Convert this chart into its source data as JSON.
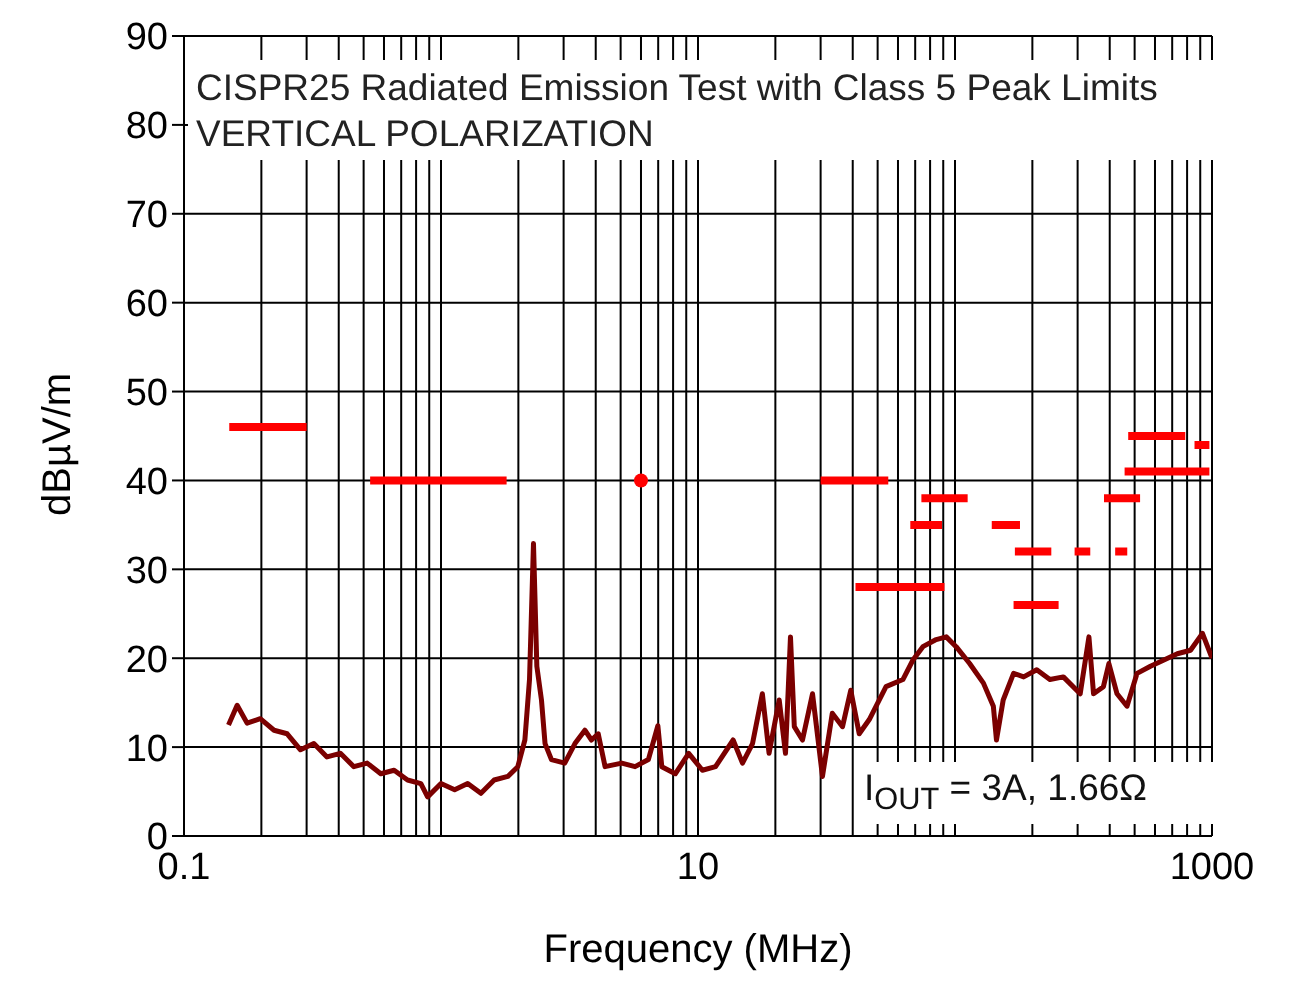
{
  "chart_data": {
    "type": "line",
    "xlabel": "Frequency (MHz)",
    "ylabel": "dBµV/m",
    "annotations": [
      "CISPR25 Radiated Emission Test with Class 5 Peak Limits VERTICAL POLARIZATION",
      "I$_{OUT}$ = 3A, 1.66Ω"
    ],
    "log": "x",
    "grid": true,
    "line_style": "solid",
    "xlim": [
      0.1,
      1000
    ],
    "ylim": [
      0,
      90
    ],
    "yticks": [
      0,
      10,
      20,
      30,
      40,
      50,
      60,
      70,
      80,
      90
    ],
    "xticks": [
      0.1,
      {
        "value": 0.2,
        "label": null
      },
      {
        "value": 0.3,
        "label": null
      },
      {
        "value": 0.4,
        "label": null
      },
      {
        "value": 0.5,
        "label": null
      },
      {
        "value": 0.6,
        "label": null
      },
      {
        "value": 0.7,
        "label": null
      },
      {
        "value": 0.8,
        "label": null
      },
      {
        "value": 0.9,
        "label": null
      },
      {
        "value": 1,
        "label": null
      },
      {
        "value": 2,
        "label": null
      },
      {
        "value": 3,
        "label": null
      },
      {
        "value": 4,
        "label": null
      },
      {
        "value": 5,
        "label": null
      },
      {
        "value": 6,
        "label": null
      },
      {
        "value": 7,
        "label": null
      },
      {
        "value": 8,
        "label": null
      },
      {
        "value": 9,
        "label": null
      },
      10,
      {
        "value": 20,
        "label": null
      },
      {
        "value": 30,
        "label": null
      },
      {
        "value": 40,
        "label": null
      },
      {
        "value": 50,
        "label": null
      },
      {
        "value": 60,
        "label": null
      },
      {
        "value": 70,
        "label": null
      },
      {
        "value": 80,
        "label": null
      },
      {
        "value": 90,
        "label": null
      },
      {
        "value": 100,
        "label": null
      },
      {
        "value": 200,
        "label": null
      },
      {
        "value": 300,
        "label": null
      },
      {
        "value": 400,
        "label": null
      },
      {
        "value": 500,
        "label": null
      },
      {
        "value": 600,
        "label": null
      },
      {
        "value": 700,
        "label": null
      },
      {
        "value": 800,
        "label": null
      },
      {
        "value": 900,
        "label": null
      },
      1000
    ],
    "series": [
      {
        "color": "#7b0000",
        "x": [
          0.149,
          0.161,
          0.176,
          0.198,
          0.224,
          0.252,
          0.284,
          0.32,
          0.36,
          0.406,
          0.458,
          0.516,
          0.583,
          0.657,
          0.741,
          0.835,
          0.887,
          1.0,
          1.13,
          1.27,
          1.43,
          1.61,
          1.82,
          1.99,
          2.12,
          2.21,
          2.29,
          2.36,
          2.46,
          2.54,
          2.69,
          3.03,
          3.32,
          3.63,
          3.85,
          4.09,
          4.35,
          5.05,
          5.69,
          6.41,
          6.98,
          7.23,
          8.16,
          9.2,
          10.4,
          11.7,
          13.7,
          14.9,
          16.3,
          17.8,
          18.9,
          20.7,
          21.9,
          22.9,
          23.7,
          25.5,
          27.9,
          30.5,
          33.3,
          36.5,
          39.3,
          42.4,
          46.4,
          53.9,
          62.7,
          68.6,
          75,
          84.5,
          92.5,
          101,
          114,
          129,
          141,
          145,
          154,
          169,
          185,
          208,
          234,
          264,
          307,
          332,
          346,
          378,
          397,
          427,
          467,
          511,
          576,
          650,
          733,
          825,
          918,
          1000
        ],
        "values": [
          12.5,
          14.7,
          12.7,
          13.2,
          11.9,
          11.5,
          9.7,
          10.4,
          8.9,
          9.3,
          7.8,
          8.2,
          7.0,
          7.4,
          6.3,
          5.9,
          4.4,
          5.9,
          5.2,
          5.9,
          4.8,
          6.3,
          6.7,
          7.8,
          10.8,
          17.6,
          32.9,
          19.1,
          15.3,
          10.4,
          8.6,
          8.2,
          10.4,
          11.9,
          10.8,
          11.5,
          7.8,
          8.2,
          7.8,
          8.6,
          12.4,
          7.8,
          7.0,
          9.3,
          7.4,
          7.8,
          10.8,
          8.2,
          10.4,
          16.0,
          9.3,
          15.3,
          9.3,
          22.4,
          12.3,
          10.8,
          16.0,
          6.7,
          13.8,
          12.3,
          16.4,
          11.5,
          13.1,
          16.8,
          17.6,
          19.8,
          21.3,
          22.1,
          22.4,
          21.3,
          19.4,
          17.2,
          14.6,
          10.8,
          15.3,
          18.3,
          17.9,
          18.7,
          17.6,
          17.9,
          16.0,
          22.4,
          16.0,
          16.8,
          19.4,
          16.0,
          14.6,
          18.3,
          19.1,
          19.8,
          20.5,
          20.9,
          22.8,
          20
        ]
      },
      {
        "color": "#ff0000",
        "x": [
          0.15,
          0.3,
          null,
          0.53,
          1.8,
          null,
          30,
          55,
          null,
          41,
          91,
          null,
          67,
          89,
          null,
          74,
          112,
          null,
          139,
          179,
          null,
          171,
          237,
          null,
          169,
          253,
          null,
          292,
          336,
          null,
          420,
          468,
          null,
          380,
          525,
          null,
          472,
          787,
          null,
          457,
          977,
          null,
          855,
          977
        ],
        "values": [
          46,
          46,
          null,
          40,
          40,
          null,
          40,
          40,
          null,
          28,
          28,
          null,
          35,
          35,
          null,
          38,
          38,
          null,
          35,
          35,
          null,
          32,
          32,
          null,
          26,
          26,
          null,
          32,
          32,
          null,
          32,
          32,
          null,
          38,
          38,
          null,
          45,
          45,
          null,
          41,
          41,
          null,
          44,
          44
        ]
      },
      {
        "type": "scatter",
        "color": "#ff0000",
        "x": [
          6
        ],
        "values": [
          40
        ]
      }
    ]
  }
}
